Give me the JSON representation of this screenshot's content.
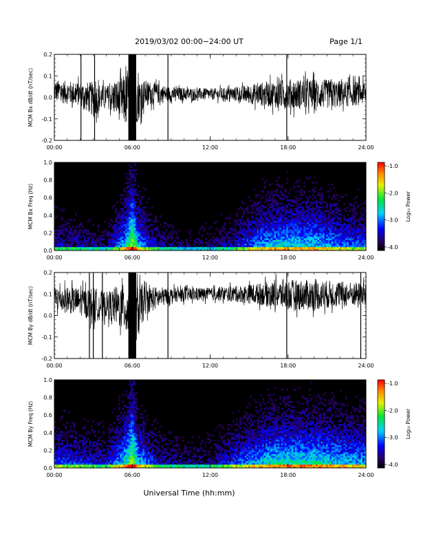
{
  "header": {
    "title": "2019/03/02  00:00−24:00 UT",
    "page": "Page 1/1"
  },
  "xaxis": {
    "label": "Universal Time (hh:mm)",
    "ticks": [
      "00:00",
      "06:00",
      "12:00",
      "18:00",
      "24:00"
    ]
  },
  "colorbar": {
    "label": "Log₁₀ Power",
    "ticks": [
      "-1.0",
      "-2.0",
      "-3.0",
      "-4.0"
    ],
    "range": [
      -4.0,
      -1.0
    ],
    "colormap": "rainbow"
  },
  "chart_data": [
    {
      "type": "line",
      "ylabel": "MCM Bx dB/dt (nT/sec)",
      "xlim": [
        0,
        24
      ],
      "ylim": [
        -0.2,
        0.2
      ],
      "yticks": [
        "0.2",
        "0.1",
        "0.0",
        "-0.1",
        "-0.2"
      ],
      "color": "#000000",
      "envelope": {
        "time_h": [
          0,
          2,
          3,
          4,
          5.5,
          6,
          6.5,
          7,
          9,
          12,
          14,
          16,
          18,
          20,
          22,
          24
        ],
        "upper": [
          0.1,
          0.09,
          0.1,
          0.07,
          0.15,
          0.2,
          0.12,
          0.1,
          0.06,
          0.05,
          0.06,
          0.09,
          0.11,
          0.11,
          0.1,
          0.09
        ],
        "lower": [
          -0.04,
          -0.06,
          -0.12,
          -0.06,
          -0.18,
          -0.2,
          -0.14,
          -0.06,
          -0.03,
          -0.02,
          -0.03,
          -0.06,
          -0.08,
          -0.08,
          -0.07,
          -0.05
        ]
      },
      "spikes_h": [
        2.05,
        3.1,
        5.8,
        6.2,
        8.75,
        17.9
      ]
    },
    {
      "type": "heatmap",
      "ylabel": "MCM Bx Freq (Hz)",
      "xlim": [
        0,
        24
      ],
      "ylim": [
        0.0,
        1.0
      ],
      "yticks": [
        "1.0",
        "0.8",
        "0.6",
        "0.4",
        "0.2",
        "0.0"
      ],
      "zlim": [
        -4.0,
        -1.0
      ],
      "z_label": "Log₁₀ Power",
      "activity": {
        "time_h": [
          0,
          2,
          4,
          5.5,
          6,
          6.5,
          8,
          10,
          12,
          14,
          16,
          17,
          18,
          19,
          20,
          22,
          24
        ],
        "level": [
          0.35,
          0.3,
          0.25,
          0.6,
          0.9,
          0.55,
          0.3,
          0.2,
          0.22,
          0.35,
          0.55,
          0.6,
          0.6,
          0.6,
          0.6,
          0.5,
          0.45
        ]
      }
    },
    {
      "type": "line",
      "ylabel": "MCM By dB/dt (nT/sec)",
      "xlim": [
        0,
        24
      ],
      "ylim": [
        -0.2,
        0.2
      ],
      "yticks": [
        "0.2",
        "0.1",
        "0.0",
        "-0.1",
        "-0.2"
      ],
      "color": "#000000",
      "envelope": {
        "time_h": [
          0,
          2,
          3,
          4,
          5.5,
          6,
          6.5,
          7,
          9,
          12,
          14,
          16,
          18,
          20,
          22,
          24
        ],
        "upper": [
          0.16,
          0.15,
          0.16,
          0.13,
          0.19,
          0.2,
          0.18,
          0.16,
          0.14,
          0.14,
          0.15,
          0.17,
          0.19,
          0.19,
          0.18,
          0.17
        ],
        "lower": [
          0.0,
          -0.02,
          -0.06,
          -0.03,
          -0.12,
          -0.2,
          -0.14,
          -0.02,
          0.05,
          0.06,
          0.05,
          0.03,
          0.0,
          0.0,
          0.02,
          0.03
        ]
      },
      "spikes_h": [
        2.7,
        3.0,
        3.7,
        5.8,
        6.2,
        8.75,
        17.9,
        23.6
      ]
    },
    {
      "type": "heatmap",
      "ylabel": "MCM By Freq (Hz)",
      "xlim": [
        0,
        24
      ],
      "ylim": [
        0.0,
        1.0
      ],
      "yticks": [
        "1.0",
        "0.8",
        "0.6",
        "0.4",
        "0.2",
        "0.0"
      ],
      "zlim": [
        -4.0,
        -1.0
      ],
      "z_label": "Log₁₀ Power",
      "activity": {
        "time_h": [
          0,
          2,
          4,
          5.5,
          6,
          6.5,
          8,
          10,
          12,
          14,
          16,
          17,
          18,
          19,
          20,
          22,
          24
        ],
        "level": [
          0.45,
          0.4,
          0.35,
          0.65,
          0.9,
          0.6,
          0.35,
          0.25,
          0.28,
          0.45,
          0.6,
          0.65,
          0.65,
          0.65,
          0.65,
          0.6,
          0.55
        ]
      }
    }
  ]
}
